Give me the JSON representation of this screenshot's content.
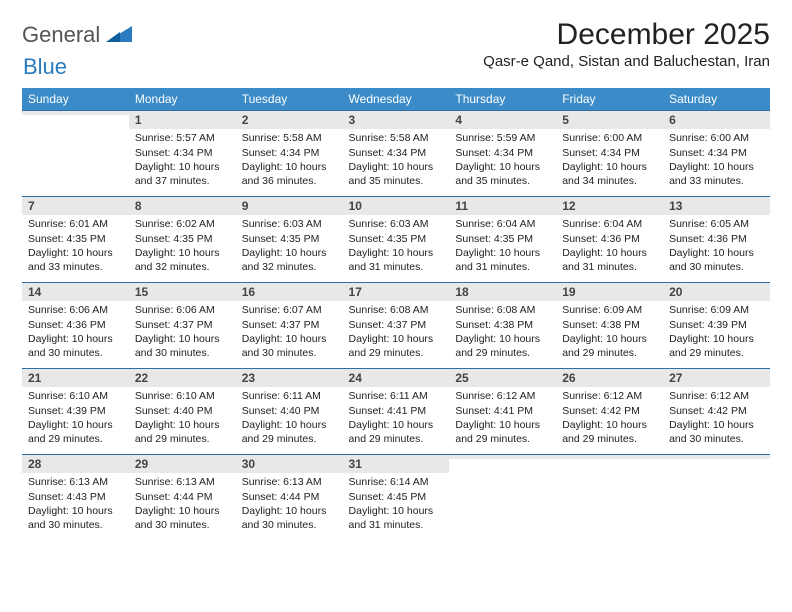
{
  "brand": {
    "part1": "General",
    "part2": "Blue"
  },
  "title": "December 2025",
  "location": "Qasr-e Qand, Sistan and Baluchestan, Iran",
  "colors": {
    "header_bg": "#3b8bc8",
    "daynum_bg": "#e8e8e8",
    "row_border": "#2f6fa3",
    "brand_blue": "#2a7bbf",
    "text": "#222222"
  },
  "weekdays": [
    "Sunday",
    "Monday",
    "Tuesday",
    "Wednesday",
    "Thursday",
    "Friday",
    "Saturday"
  ],
  "start_offset": 1,
  "days": [
    {
      "n": 1,
      "sunrise": "5:57 AM",
      "sunset": "4:34 PM",
      "daylight": "10 hours and 37 minutes."
    },
    {
      "n": 2,
      "sunrise": "5:58 AM",
      "sunset": "4:34 PM",
      "daylight": "10 hours and 36 minutes."
    },
    {
      "n": 3,
      "sunrise": "5:58 AM",
      "sunset": "4:34 PM",
      "daylight": "10 hours and 35 minutes."
    },
    {
      "n": 4,
      "sunrise": "5:59 AM",
      "sunset": "4:34 PM",
      "daylight": "10 hours and 35 minutes."
    },
    {
      "n": 5,
      "sunrise": "6:00 AM",
      "sunset": "4:34 PM",
      "daylight": "10 hours and 34 minutes."
    },
    {
      "n": 6,
      "sunrise": "6:00 AM",
      "sunset": "4:34 PM",
      "daylight": "10 hours and 33 minutes."
    },
    {
      "n": 7,
      "sunrise": "6:01 AM",
      "sunset": "4:35 PM",
      "daylight": "10 hours and 33 minutes."
    },
    {
      "n": 8,
      "sunrise": "6:02 AM",
      "sunset": "4:35 PM",
      "daylight": "10 hours and 32 minutes."
    },
    {
      "n": 9,
      "sunrise": "6:03 AM",
      "sunset": "4:35 PM",
      "daylight": "10 hours and 32 minutes."
    },
    {
      "n": 10,
      "sunrise": "6:03 AM",
      "sunset": "4:35 PM",
      "daylight": "10 hours and 31 minutes."
    },
    {
      "n": 11,
      "sunrise": "6:04 AM",
      "sunset": "4:35 PM",
      "daylight": "10 hours and 31 minutes."
    },
    {
      "n": 12,
      "sunrise": "6:04 AM",
      "sunset": "4:36 PM",
      "daylight": "10 hours and 31 minutes."
    },
    {
      "n": 13,
      "sunrise": "6:05 AM",
      "sunset": "4:36 PM",
      "daylight": "10 hours and 30 minutes."
    },
    {
      "n": 14,
      "sunrise": "6:06 AM",
      "sunset": "4:36 PM",
      "daylight": "10 hours and 30 minutes."
    },
    {
      "n": 15,
      "sunrise": "6:06 AM",
      "sunset": "4:37 PM",
      "daylight": "10 hours and 30 minutes."
    },
    {
      "n": 16,
      "sunrise": "6:07 AM",
      "sunset": "4:37 PM",
      "daylight": "10 hours and 30 minutes."
    },
    {
      "n": 17,
      "sunrise": "6:08 AM",
      "sunset": "4:37 PM",
      "daylight": "10 hours and 29 minutes."
    },
    {
      "n": 18,
      "sunrise": "6:08 AM",
      "sunset": "4:38 PM",
      "daylight": "10 hours and 29 minutes."
    },
    {
      "n": 19,
      "sunrise": "6:09 AM",
      "sunset": "4:38 PM",
      "daylight": "10 hours and 29 minutes."
    },
    {
      "n": 20,
      "sunrise": "6:09 AM",
      "sunset": "4:39 PM",
      "daylight": "10 hours and 29 minutes."
    },
    {
      "n": 21,
      "sunrise": "6:10 AM",
      "sunset": "4:39 PM",
      "daylight": "10 hours and 29 minutes."
    },
    {
      "n": 22,
      "sunrise": "6:10 AM",
      "sunset": "4:40 PM",
      "daylight": "10 hours and 29 minutes."
    },
    {
      "n": 23,
      "sunrise": "6:11 AM",
      "sunset": "4:40 PM",
      "daylight": "10 hours and 29 minutes."
    },
    {
      "n": 24,
      "sunrise": "6:11 AM",
      "sunset": "4:41 PM",
      "daylight": "10 hours and 29 minutes."
    },
    {
      "n": 25,
      "sunrise": "6:12 AM",
      "sunset": "4:41 PM",
      "daylight": "10 hours and 29 minutes."
    },
    {
      "n": 26,
      "sunrise": "6:12 AM",
      "sunset": "4:42 PM",
      "daylight": "10 hours and 29 minutes."
    },
    {
      "n": 27,
      "sunrise": "6:12 AM",
      "sunset": "4:42 PM",
      "daylight": "10 hours and 30 minutes."
    },
    {
      "n": 28,
      "sunrise": "6:13 AM",
      "sunset": "4:43 PM",
      "daylight": "10 hours and 30 minutes."
    },
    {
      "n": 29,
      "sunrise": "6:13 AM",
      "sunset": "4:44 PM",
      "daylight": "10 hours and 30 minutes."
    },
    {
      "n": 30,
      "sunrise": "6:13 AM",
      "sunset": "4:44 PM",
      "daylight": "10 hours and 30 minutes."
    },
    {
      "n": 31,
      "sunrise": "6:14 AM",
      "sunset": "4:45 PM",
      "daylight": "10 hours and 31 minutes."
    }
  ],
  "labels": {
    "sunrise": "Sunrise:",
    "sunset": "Sunset:",
    "daylight": "Daylight:"
  }
}
